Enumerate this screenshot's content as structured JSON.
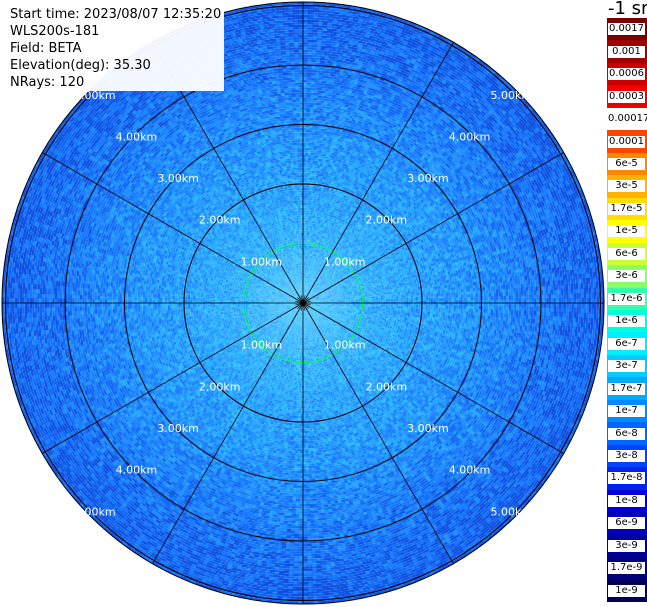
{
  "info": {
    "start_time": "Start time: 2023/08/07 12:35:20",
    "instrument": "WLS200s-181",
    "field": "Field: BETA",
    "elevation": "Elevation(deg): 35.30",
    "nrays": "NRays: 120"
  },
  "units": "-1 sr",
  "range_labels": [
    "1.00km",
    "2.00km",
    "3.00km",
    "4.00km",
    "5.00km"
  ],
  "colorbar": {
    "labels": [
      "0.0017",
      "0.001",
      "0.0006",
      "0.0003",
      "0.00017",
      "0.0001",
      "6e-5",
      "3e-5",
      "1.7e-5",
      "1e-5",
      "6e-6",
      "3e-6",
      "1.7e-6",
      "1e-6",
      "6e-7",
      "3e-7",
      "1.7e-7",
      "1e-7",
      "6e-8",
      "3e-8",
      "1.7e-8",
      "1e-8",
      "6e-9",
      "3e-9",
      "1.7e-9",
      "1e-9"
    ],
    "colors": [
      "#7a0000",
      "#a00000",
      "#c80000",
      "#ee0000",
      "#ffffff",
      "#ff4400",
      "#ff8800",
      "#ffb300",
      "#ffdd00",
      "#ffff00",
      "#ccff33",
      "#88ff66",
      "#33ffaa",
      "#00ffdd",
      "#00eeff",
      "#00ccff",
      "#00aaff",
      "#0088ff",
      "#0066ff",
      "#0044ff",
      "#0022ee",
      "#0000dd",
      "#0000bb",
      "#000099",
      "#000077",
      "#000055"
    ]
  }
}
